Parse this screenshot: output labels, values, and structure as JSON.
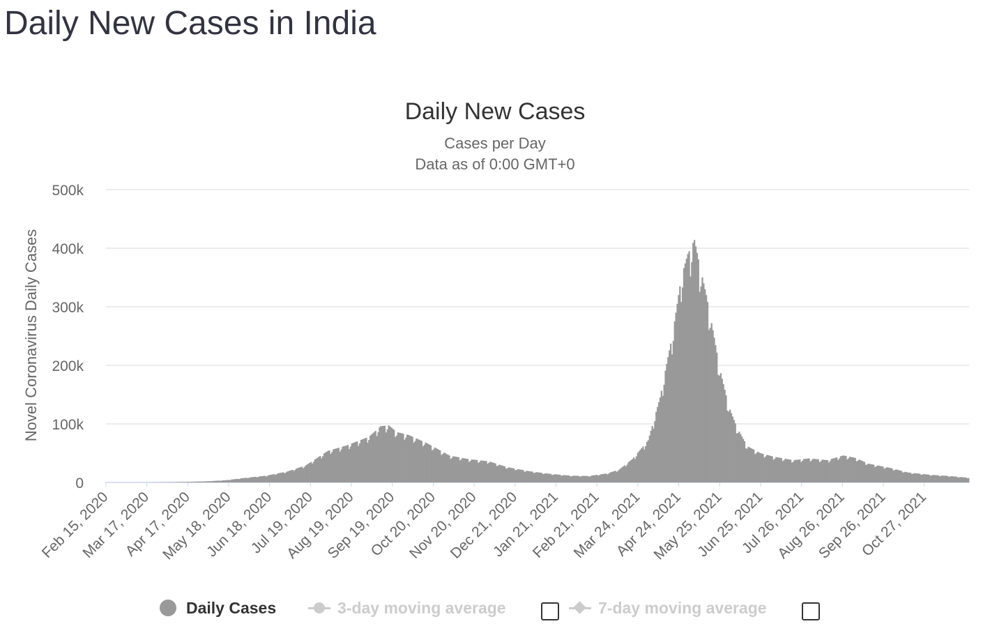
{
  "page": {
    "title": "Daily New Cases in India"
  },
  "legend": {
    "items": [
      {
        "label": "Daily Cases",
        "active": true
      },
      {
        "label": "3-day moving average",
        "active": false
      },
      {
        "label": "7-day moving average",
        "active": false
      }
    ]
  },
  "colors": {
    "bars": "#999999",
    "grid": "#e6e6e6",
    "axis_text": "#666666",
    "title": "#333333",
    "inactive": "#cccccc"
  },
  "chart_data": {
    "type": "bar",
    "title": "Daily New Cases",
    "subtitle_lines": [
      "Cases per Day",
      "Data as of 0:00 GMT+0"
    ],
    "ylabel": "Novel Coronavirus Daily Cases",
    "xlabel": "",
    "ylim": [
      0,
      500000
    ],
    "y_ticks": [
      {
        "value": 0,
        "label": "0"
      },
      {
        "value": 100000,
        "label": "100k"
      },
      {
        "value": 200000,
        "label": "200k"
      },
      {
        "value": 300000,
        "label": "300k"
      },
      {
        "value": 400000,
        "label": "400k"
      },
      {
        "value": 500000,
        "label": "500k"
      }
    ],
    "grid": true,
    "x_range": [
      "2020-02-15",
      "2021-11-30"
    ],
    "x_ticks": [
      {
        "date": "2020-02-15",
        "label": "Feb 15, 2020"
      },
      {
        "date": "2020-03-17",
        "label": "Mar 17, 2020"
      },
      {
        "date": "2020-04-17",
        "label": "Apr 17, 2020"
      },
      {
        "date": "2020-05-18",
        "label": "May 18, 2020"
      },
      {
        "date": "2020-06-18",
        "label": "Jun 18, 2020"
      },
      {
        "date": "2020-07-19",
        "label": "Jul 19, 2020"
      },
      {
        "date": "2020-08-19",
        "label": "Aug 19, 2020"
      },
      {
        "date": "2020-09-19",
        "label": "Sep 19, 2020"
      },
      {
        "date": "2020-10-20",
        "label": "Oct 20, 2020"
      },
      {
        "date": "2020-11-20",
        "label": "Nov 20, 2020"
      },
      {
        "date": "2020-12-21",
        "label": "Dec 21, 2020"
      },
      {
        "date": "2021-01-21",
        "label": "Jan 21, 2021"
      },
      {
        "date": "2021-02-21",
        "label": "Feb 21, 2021"
      },
      {
        "date": "2021-03-24",
        "label": "Mar 24, 2021"
      },
      {
        "date": "2021-04-24",
        "label": "Apr 24, 2021"
      },
      {
        "date": "2021-05-25",
        "label": "May 25, 2021"
      },
      {
        "date": "2021-06-25",
        "label": "Jun 25, 2021"
      },
      {
        "date": "2021-07-26",
        "label": "Jul 26, 2021"
      },
      {
        "date": "2021-08-26",
        "label": "Aug 26, 2021"
      },
      {
        "date": "2021-09-26",
        "label": "Sep 26, 2021"
      },
      {
        "date": "2021-10-27",
        "label": "Oct 27, 2021"
      }
    ],
    "series": [
      {
        "name": "Daily Cases",
        "interpolation": "linear",
        "points": [
          [
            "2020-02-15",
            0
          ],
          [
            "2020-03-01",
            0
          ],
          [
            "2020-03-20",
            50
          ],
          [
            "2020-04-01",
            400
          ],
          [
            "2020-04-15",
            1000
          ],
          [
            "2020-05-01",
            1900
          ],
          [
            "2020-05-15",
            3700
          ],
          [
            "2020-06-01",
            8200
          ],
          [
            "2020-06-15",
            11500
          ],
          [
            "2020-07-01",
            18600
          ],
          [
            "2020-07-15",
            29000
          ],
          [
            "2020-08-01",
            54000
          ],
          [
            "2020-08-15",
            63000
          ],
          [
            "2020-09-01",
            78000
          ],
          [
            "2020-09-10",
            96000
          ],
          [
            "2020-09-16",
            97500
          ],
          [
            "2020-09-22",
            86000
          ],
          [
            "2020-10-01",
            81000
          ],
          [
            "2020-10-15",
            67000
          ],
          [
            "2020-11-01",
            46000
          ],
          [
            "2020-11-15",
            40000
          ],
          [
            "2020-12-01",
            36000
          ],
          [
            "2020-12-15",
            26000
          ],
          [
            "2021-01-01",
            19000
          ],
          [
            "2021-01-15",
            15000
          ],
          [
            "2021-02-01",
            11500
          ],
          [
            "2021-02-15",
            11000
          ],
          [
            "2021-03-01",
            15500
          ],
          [
            "2021-03-10",
            22000
          ],
          [
            "2021-03-20",
            40000
          ],
          [
            "2021-04-01",
            72000
          ],
          [
            "2021-04-10",
            145000
          ],
          [
            "2021-04-20",
            260000
          ],
          [
            "2021-04-26",
            350000
          ],
          [
            "2021-05-01",
            390000
          ],
          [
            "2021-05-06",
            414000
          ],
          [
            "2021-05-10",
            370000
          ],
          [
            "2021-05-15",
            320000
          ],
          [
            "2021-05-20",
            260000
          ],
          [
            "2021-05-25",
            196000
          ],
          [
            "2021-06-01",
            130000
          ],
          [
            "2021-06-07",
            95000
          ],
          [
            "2021-06-15",
            62000
          ],
          [
            "2021-06-25",
            50000
          ],
          [
            "2021-07-05",
            44000
          ],
          [
            "2021-07-20",
            38000
          ],
          [
            "2021-08-01",
            41000
          ],
          [
            "2021-08-15",
            38000
          ],
          [
            "2021-08-27",
            46000
          ],
          [
            "2021-09-05",
            42000
          ],
          [
            "2021-09-15",
            32000
          ],
          [
            "2021-10-01",
            25000
          ],
          [
            "2021-10-15",
            17000
          ],
          [
            "2021-11-01",
            13000
          ],
          [
            "2021-11-15",
            11000
          ],
          [
            "2021-11-30",
            8000
          ]
        ]
      }
    ]
  }
}
